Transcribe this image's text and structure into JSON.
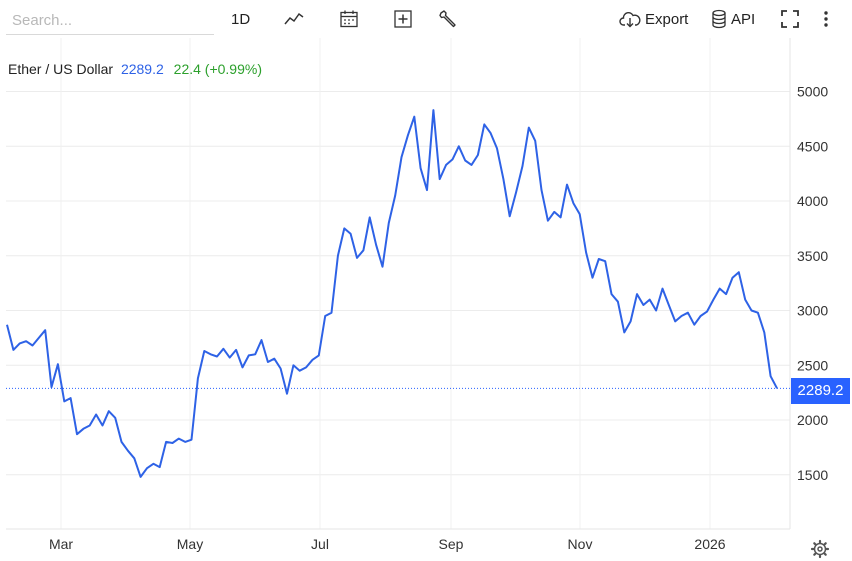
{
  "toolbar": {
    "search_placeholder": "Search...",
    "interval": "1D",
    "export_label": "Export",
    "api_label": "API"
  },
  "legend": {
    "symbol": "Ether / US Dollar",
    "price": "2289.2",
    "change": "22.4 (+0.99%)"
  },
  "price_tag": "2289.2",
  "colors": {
    "line": "#2e62e6",
    "price_tag": "#2962ff",
    "change_positive": "#2ca02c",
    "grid": "#ececec"
  },
  "chart_data": {
    "type": "line",
    "title": "",
    "xlabel": "",
    "ylabel": "",
    "x_tick_labels": [
      "Mar",
      "May",
      "Jul",
      "Sep",
      "Nov",
      "2026"
    ],
    "y_ticks": [
      1500,
      2000,
      2500,
      3000,
      3500,
      4000,
      4500,
      5000
    ],
    "ylim": [
      1000,
      5400
    ],
    "y_axis_position": "right",
    "grid": true,
    "last_price": 2289.2,
    "series": [
      {
        "values": [
          2870,
          2640,
          2700,
          2720,
          2680,
          2750,
          2820,
          2300,
          2510,
          2170,
          2200,
          1870,
          1920,
          1950,
          2050,
          1950,
          2080,
          2020,
          1800,
          1720,
          1650,
          1480,
          1560,
          1600,
          1570,
          1800,
          1790,
          1830,
          1800,
          1820,
          2380,
          2630,
          2600,
          2580,
          2650,
          2570,
          2640,
          2480,
          2590,
          2600,
          2730,
          2530,
          2560,
          2470,
          2240,
          2500,
          2450,
          2480,
          2550,
          2590,
          2950,
          2980,
          3500,
          3750,
          3700,
          3480,
          3550,
          3850,
          3600,
          3400,
          3800,
          4050,
          4400,
          4600,
          4770,
          4300,
          4100,
          4830,
          4200,
          4330,
          4380,
          4500,
          4370,
          4330,
          4420,
          4700,
          4620,
          4480,
          4200,
          3860,
          4080,
          4320,
          4670,
          4550,
          4100,
          3820,
          3900,
          3850,
          4150,
          3980,
          3880,
          3530,
          3300,
          3470,
          3450,
          3150,
          3080,
          2800,
          2900,
          3150,
          3050,
          3100,
          3000,
          3200,
          3050,
          2900,
          2950,
          2980,
          2870,
          2950,
          2990,
          3100,
          3200,
          3150,
          3300,
          3350,
          3100,
          3000,
          2980,
          2800,
          2400,
          2289.2
        ]
      }
    ]
  }
}
